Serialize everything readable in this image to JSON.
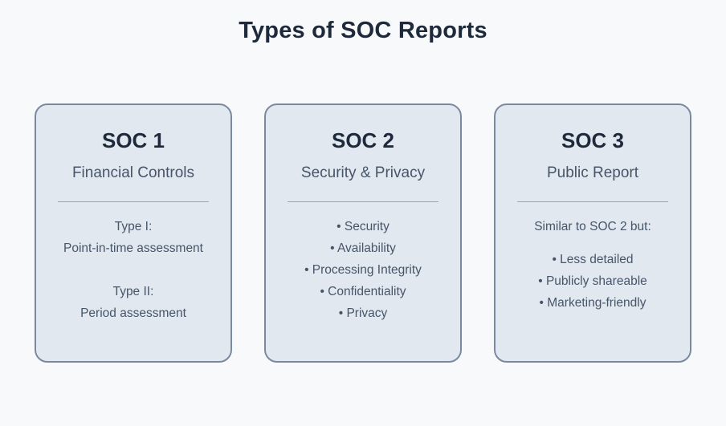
{
  "page": {
    "title": "Types of SOC Reports"
  },
  "colors": {
    "background": "#f8f9fb",
    "card_background": "#e2e8f0",
    "card_border": "#7b89a0",
    "heading_text": "#1e2a3b",
    "body_text": "#475569",
    "divider": "#9aa5b3"
  },
  "cards": [
    {
      "heading": "SOC 1",
      "subheading": "Financial Controls",
      "groups": [
        [
          "Type I:",
          "Point-in-time assessment"
        ],
        [
          "Type II:",
          "Period assessment"
        ]
      ]
    },
    {
      "heading": "SOC 2",
      "subheading": "Security & Privacy",
      "bullets": [
        "• Security",
        "• Availability",
        "• Processing Integrity",
        "• Confidentiality",
        "• Privacy"
      ]
    },
    {
      "heading": "SOC 3",
      "subheading": "Public Report",
      "intro": "Similar to SOC 2 but:",
      "bullets": [
        "• Less detailed",
        "• Publicly shareable",
        "• Marketing-friendly"
      ]
    }
  ]
}
